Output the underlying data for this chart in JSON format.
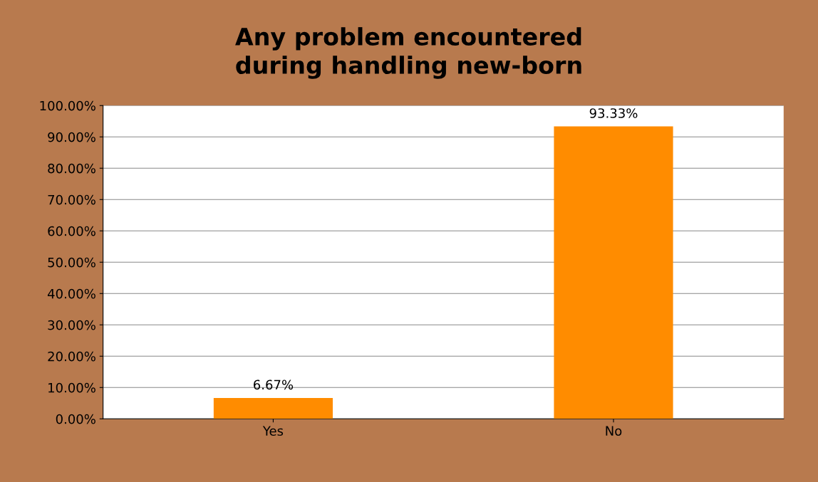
{
  "chart_data": {
    "type": "bar",
    "title": "Any problem encountered during handling new-born",
    "categories": [
      "Yes",
      "No"
    ],
    "values": [
      6.67,
      93.33
    ],
    "value_labels": [
      "6.67%",
      "93.33%"
    ],
    "color": "#ff8c00",
    "ylim": [
      0,
      100
    ],
    "yticks": [
      {
        "value": 0,
        "label": "0.00%"
      },
      {
        "value": 10,
        "label": "10.00%"
      },
      {
        "value": 20,
        "label": "20.00%"
      },
      {
        "value": 30,
        "label": "30.00%"
      },
      {
        "value": 40,
        "label": "40.00%"
      },
      {
        "value": 50,
        "label": "50.00%"
      },
      {
        "value": 60,
        "label": "60.00%"
      },
      {
        "value": 70,
        "label": "70.00%"
      },
      {
        "value": 80,
        "label": "80.00%"
      },
      {
        "value": 90,
        "label": "90.00%"
      },
      {
        "value": 100,
        "label": "100.00%"
      }
    ],
    "grid": "y"
  }
}
